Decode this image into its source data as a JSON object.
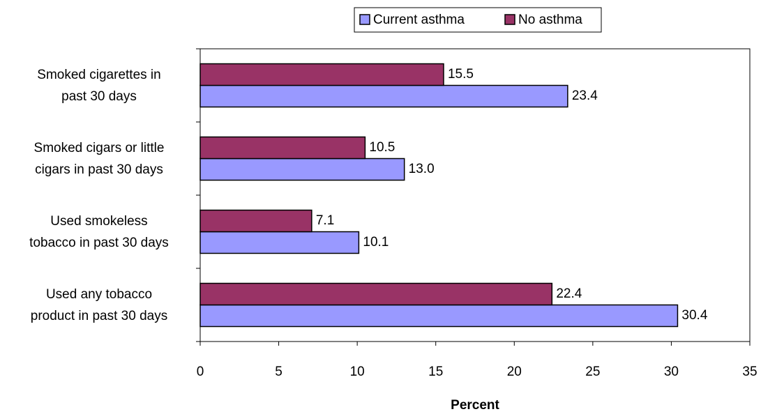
{
  "chart_data": {
    "type": "hbar",
    "categories": [
      "Smoked cigarettes in\npast 30 days",
      "Smoked cigars or little\ncigars in past 30 days",
      "Used smokeless\ntobacco in past 30 days",
      "Used any tobacco\nproduct in past 30 days"
    ],
    "series": [
      {
        "name": "Current asthma",
        "color": "#9999ff",
        "values": [
          23.4,
          13.0,
          10.1,
          30.4
        ],
        "value_labels": [
          "23.4",
          "13.0",
          "10.1",
          "30.4"
        ]
      },
      {
        "name": "No asthma",
        "color": "#993366",
        "values": [
          15.5,
          10.5,
          7.1,
          22.4
        ],
        "value_labels": [
          "15.5",
          "10.5",
          "7.1",
          "22.4"
        ]
      }
    ],
    "xlabel": "Percent",
    "xlim": [
      0,
      35
    ],
    "xticks": [
      0,
      5,
      10,
      15,
      20,
      25,
      30,
      35
    ],
    "legend": "top"
  }
}
